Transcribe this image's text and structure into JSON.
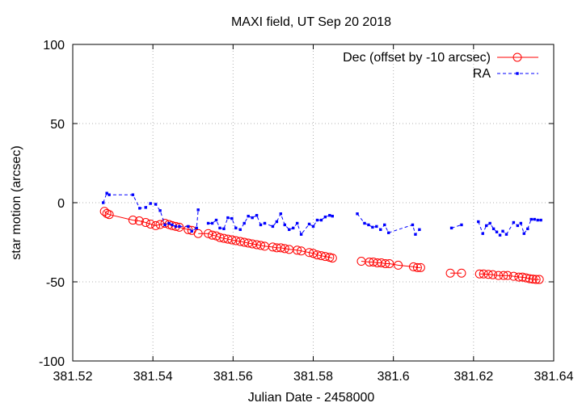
{
  "chart_data": {
    "type": "line",
    "title": "MAXI field, UT Sep 20 2018",
    "xlabel": "Julian Date - 2458000",
    "ylabel": "star motion (arcsec)",
    "xlim": [
      381.52,
      381.64
    ],
    "ylim": [
      -100,
      100
    ],
    "x_ticks": [
      381.52,
      381.54,
      381.56,
      381.58,
      381.6,
      381.62,
      381.64
    ],
    "x_tick_labels": [
      "381.52",
      "381.54",
      "381.56",
      "381.58",
      "381.6",
      "381.62",
      "381.64"
    ],
    "y_ticks": [
      -100,
      -50,
      0,
      50,
      100
    ],
    "y_tick_labels": [
      "-100",
      "-50",
      "0",
      "50",
      "100"
    ],
    "grid": true,
    "legend_position": "top-right",
    "colors": {
      "dec": "#ff0000",
      "ra": "#0000ff"
    },
    "series": [
      {
        "name": "Dec (offset by -10 arcsec)",
        "marker": "open-circle",
        "line": "solid",
        "color": "#ff0000",
        "segments": [
          [
            [
              381.5279,
              -5.5
            ],
            [
              381.5285,
              -6.8
            ],
            [
              381.5291,
              -7.5
            ],
            [
              381.535,
              -11
            ],
            [
              381.5366,
              -11.5
            ],
            [
              381.5382,
              -12.5
            ],
            [
              381.5394,
              -13.5
            ],
            [
              381.5407,
              -14.5
            ],
            [
              381.5418,
              -13.8
            ],
            [
              381.543,
              -13
            ],
            [
              381.544,
              -13.8
            ],
            [
              381.5448,
              -14.5
            ],
            [
              381.5457,
              -15
            ],
            [
              381.5466,
              -15.5
            ],
            [
              381.5488,
              -17
            ],
            [
              381.5497,
              -17.5
            ]
          ],
          [
            [
              381.5513,
              -19.5
            ],
            [
              381.5538,
              -19.5
            ],
            [
              381.5548,
              -20.5
            ],
            [
              381.5558,
              -21
            ],
            [
              381.5567,
              -22
            ],
            [
              381.5577,
              -22.5
            ],
            [
              381.5587,
              -23
            ],
            [
              381.5597,
              -23.5
            ],
            [
              381.5607,
              -24
            ],
            [
              381.5618,
              -24.5
            ],
            [
              381.5628,
              -25
            ],
            [
              381.5638,
              -25.5
            ],
            [
              381.5648,
              -26
            ],
            [
              381.5659,
              -26.5
            ],
            [
              381.5669,
              -27
            ],
            [
              381.5679,
              -27.5
            ],
            [
              381.5699,
              -28
            ],
            [
              381.5709,
              -28.5
            ],
            [
              381.5719,
              -28.5
            ],
            [
              381.5729,
              -29
            ],
            [
              381.574,
              -29.5
            ],
            [
              381.576,
              -30
            ],
            [
              381.577,
              -30.5
            ],
            [
              381.579,
              -31.5
            ],
            [
              381.58,
              -32
            ],
            [
              381.581,
              -33
            ],
            [
              381.582,
              -33.5
            ],
            [
              381.583,
              -34
            ],
            [
              381.5841,
              -34.5
            ],
            [
              381.5848,
              -35
            ]
          ],
          [
            [
              381.592,
              -37
            ],
            [
              381.594,
              -37.5
            ],
            [
              381.595,
              -37.5
            ],
            [
              381.596,
              -38
            ],
            [
              381.597,
              -38
            ],
            [
              381.598,
              -38.5
            ],
            [
              381.599,
              -38.5
            ],
            [
              381.6012,
              -39.5
            ],
            [
              381.605,
              -40.5
            ],
            [
              381.606,
              -41
            ],
            [
              381.6068,
              -41
            ]
          ],
          [
            [
              381.6142,
              -44.5
            ],
            [
              381.617,
              -44.5
            ]
          ],
          [
            [
              381.6215,
              -45
            ],
            [
              381.6225,
              -45
            ],
            [
              381.6237,
              -45.3
            ],
            [
              381.6248,
              -45.5
            ],
            [
              381.6262,
              -46
            ],
            [
              381.6275,
              -46
            ],
            [
              381.6285,
              -46
            ],
            [
              381.63,
              -46.5
            ],
            [
              381.6313,
              -47
            ],
            [
              381.6322,
              -47
            ],
            [
              381.6331,
              -47.5
            ],
            [
              381.634,
              -48
            ],
            [
              381.6348,
              -48.3
            ],
            [
              381.6356,
              -48.5
            ],
            [
              381.6364,
              -48.5
            ]
          ]
        ]
      },
      {
        "name": "RA",
        "marker": "small-filled-square",
        "line": "dashed",
        "color": "#0000ff",
        "segments": [
          [
            [
              381.5276,
              0
            ],
            [
              381.5285,
              6
            ],
            [
              381.5291,
              5
            ],
            [
              381.535,
              5
            ],
            [
              381.5367,
              -3.5
            ],
            [
              381.5382,
              -3
            ],
            [
              381.5394,
              -0.5
            ],
            [
              381.5407,
              -1
            ],
            [
              381.5418,
              -5
            ],
            [
              381.543,
              -14
            ],
            [
              381.544,
              -13
            ],
            [
              381.5448,
              -14
            ],
            [
              381.5457,
              -15
            ],
            [
              381.5466,
              -15
            ],
            [
              381.5488,
              -15
            ],
            [
              381.5497,
              -18
            ],
            [
              381.5509,
              -16
            ],
            [
              381.5513,
              -4.5
            ]
          ],
          [
            [
              381.5538,
              -13
            ],
            [
              381.5548,
              -13
            ],
            [
              381.5558,
              -11
            ],
            [
              381.5567,
              -16
            ],
            [
              381.5577,
              -16.5
            ],
            [
              381.5587,
              -9.5
            ],
            [
              381.5597,
              -10
            ],
            [
              381.5607,
              -16
            ],
            [
              381.5618,
              -17
            ],
            [
              381.5628,
              -13
            ],
            [
              381.5638,
              -8.5
            ],
            [
              381.5648,
              -9.5
            ],
            [
              381.5659,
              -8
            ],
            [
              381.5669,
              -14
            ],
            [
              381.5679,
              -13
            ],
            [
              381.5699,
              -15
            ],
            [
              381.5709,
              -12
            ],
            [
              381.5719,
              -7
            ],
            [
              381.5729,
              -14
            ],
            [
              381.574,
              -17
            ],
            [
              381.575,
              -16
            ],
            [
              381.576,
              -13
            ],
            [
              381.577,
              -20
            ],
            [
              381.579,
              -13.5
            ],
            [
              381.58,
              -15
            ],
            [
              381.581,
              -11
            ],
            [
              381.582,
              -11
            ],
            [
              381.583,
              -9
            ],
            [
              381.5841,
              -8
            ],
            [
              381.5848,
              -8.5
            ]
          ],
          [
            [
              381.591,
              -7
            ],
            [
              381.5928,
              -13
            ],
            [
              381.5938,
              -14
            ],
            [
              381.5948,
              -15.5
            ],
            [
              381.5958,
              -15
            ],
            [
              381.5968,
              -17
            ],
            [
              381.5978,
              -14
            ],
            [
              381.5988,
              -19
            ],
            [
              381.6048,
              -14
            ],
            [
              381.6055,
              -20
            ],
            [
              381.6065,
              -17
            ]
          ],
          [
            [
              381.6145,
              -16
            ],
            [
              381.617,
              -14
            ]
          ],
          [
            [
              381.6212,
              -12
            ],
            [
              381.6223,
              -19.5
            ],
            [
              381.6232,
              -14.5
            ],
            [
              381.6241,
              -13
            ],
            [
              381.625,
              -16.5
            ],
            [
              381.6258,
              -18.5
            ],
            [
              381.6266,
              -20.5
            ],
            [
              381.6273,
              -18
            ],
            [
              381.6282,
              -20
            ],
            [
              381.63,
              -12.5
            ],
            [
              381.631,
              -14.5
            ],
            [
              381.6318,
              -13
            ],
            [
              381.6326,
              -19.5
            ],
            [
              381.6335,
              -16.5
            ],
            [
              381.6344,
              -10.5
            ],
            [
              381.6352,
              -10.5
            ],
            [
              381.636,
              -11
            ],
            [
              381.6368,
              -11
            ]
          ]
        ]
      }
    ]
  }
}
